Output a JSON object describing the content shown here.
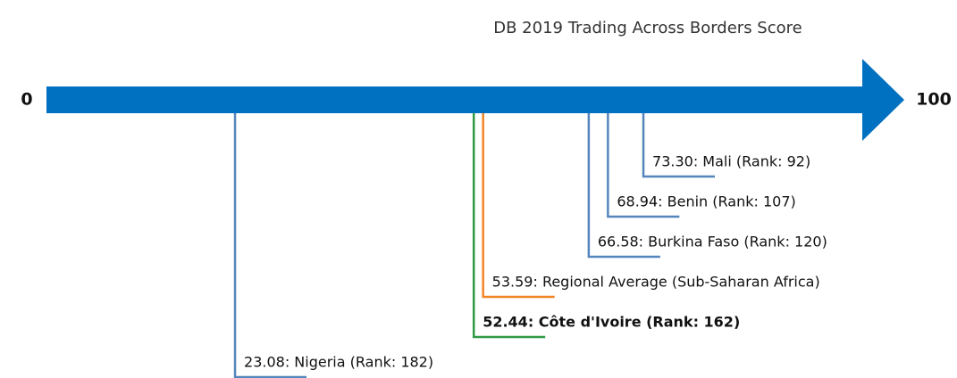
{
  "chart_data": {
    "type": "scale",
    "title": "DB 2019 Trading Across Borders Score",
    "xlim": [
      0,
      100
    ],
    "xticks": [
      0,
      100
    ],
    "arrow_color": "#0070c0",
    "labels": [
      "73.30: Mali (Rank: 92)",
      "68.94: Benin (Rank: 107)",
      "66.58: Burkina Faso (Rank: 120)",
      "53.59: Regional Average (Sub-Saharan Africa)",
      "52.44: Côte d'Ivoire (Rank: 162)",
      "23.08: Nigeria (Rank: 182)"
    ],
    "values": [
      73.3,
      68.94,
      66.58,
      53.59,
      52.44,
      23.08
    ],
    "colors": [
      "#5585bd",
      "#5585bd",
      "#5585bd",
      "#f28524",
      "#2e9a46",
      "#5585bd"
    ],
    "bold": [
      false,
      false,
      false,
      false,
      true,
      false
    ]
  }
}
